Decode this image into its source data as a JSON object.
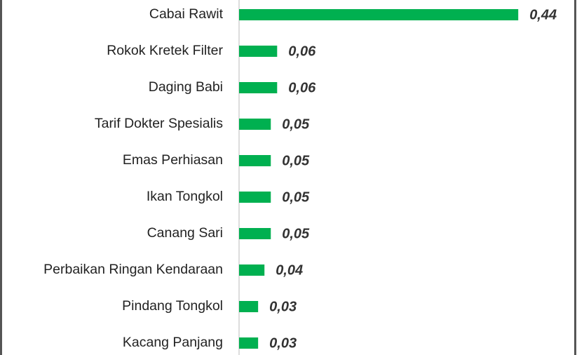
{
  "chart_data": {
    "type": "bar",
    "orientation": "horizontal",
    "categories": [
      "Cabai Rawit",
      "Rokok Kretek Filter",
      "Daging Babi",
      "Tarif Dokter Spesialis",
      "Emas Perhiasan",
      "Ikan Tongkol",
      "Canang Sari",
      "Perbaikan Ringan Kendaraan",
      "Pindang Tongkol",
      "Kacang Panjang"
    ],
    "values": [
      0.44,
      0.06,
      0.06,
      0.05,
      0.05,
      0.05,
      0.05,
      0.04,
      0.03,
      0.03
    ],
    "value_labels": [
      "0,44",
      "0,06",
      "0,06",
      "0,05",
      "0,05",
      "0,05",
      "0,05",
      "0,04",
      "0,03",
      "0,03"
    ],
    "color": "#00b050"
  }
}
